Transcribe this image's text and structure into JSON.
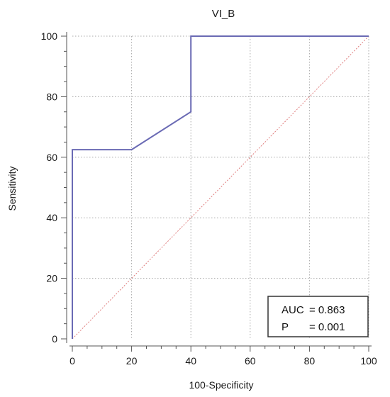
{
  "chart_data": {
    "type": "line",
    "title": "VI_B",
    "xlabel": "100-Specificity",
    "ylabel": "Sensitivity",
    "xlim": [
      0,
      100
    ],
    "ylim": [
      0,
      100
    ],
    "x_ticks": [
      0,
      20,
      40,
      60,
      80,
      100
    ],
    "y_ticks": [
      0,
      20,
      40,
      60,
      80,
      100
    ],
    "x_tick_labels": [
      "0",
      "20",
      "40",
      "60",
      "80",
      "100"
    ],
    "y_tick_labels": [
      "0",
      "20",
      "40",
      "60",
      "80",
      "100"
    ],
    "grid": true,
    "series": [
      {
        "color": "#6a6ab4",
        "style": "solid",
        "x": [
          0,
          0,
          20,
          40,
          40,
          100
        ],
        "y": [
          0,
          62.5,
          62.5,
          75,
          100,
          100
        ]
      },
      {
        "color": "#e08080",
        "style": "dotted",
        "x": [
          0,
          100
        ],
        "y": [
          0,
          100
        ]
      }
    ],
    "annotation": {
      "placement": "bottom-right",
      "auc_label": "AUC",
      "auc_value": "= 0.863",
      "p_label": "P",
      "p_value": "= 0.001"
    }
  }
}
